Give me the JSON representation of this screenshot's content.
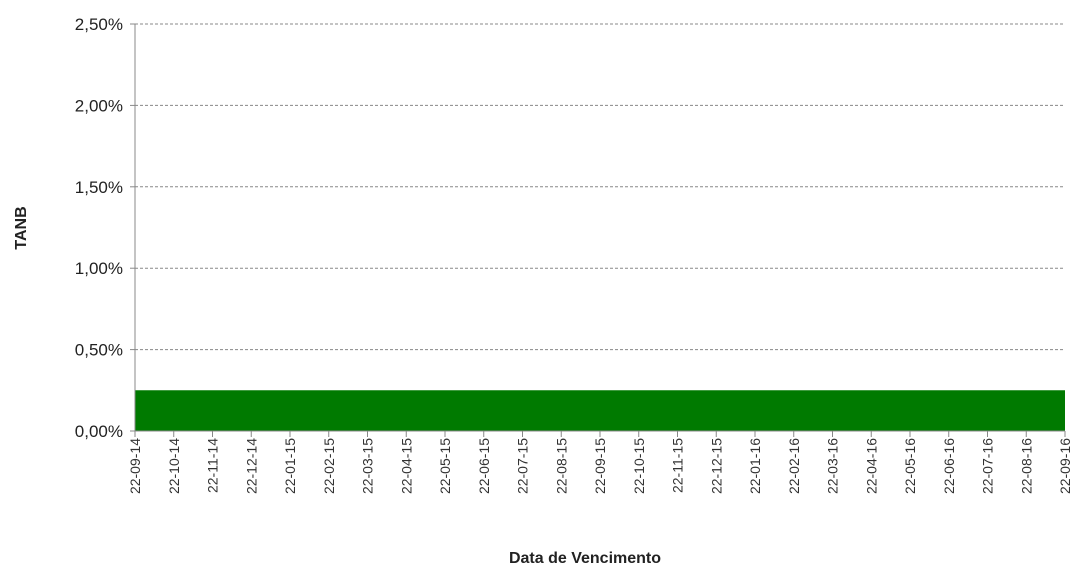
{
  "chart_data": {
    "type": "area",
    "x_label": "Data de Vencimento",
    "y_label": "TANB",
    "categories": [
      "22-09-14",
      "22-10-14",
      "22-11-14",
      "22-12-14",
      "22-01-15",
      "22-02-15",
      "22-03-15",
      "22-04-15",
      "22-05-15",
      "22-06-15",
      "22-07-15",
      "22-08-15",
      "22-09-15",
      "22-10-15",
      "22-11-15",
      "22-12-15",
      "22-01-16",
      "22-02-16",
      "22-03-16",
      "22-04-16",
      "22-05-16",
      "22-06-16",
      "22-07-16",
      "22-08-16",
      "22-09-16"
    ],
    "series": [
      {
        "name": "TANB",
        "color": "#007a00",
        "values": [
          0.25,
          0.25,
          0.25,
          0.25,
          0.25,
          0.25,
          0.25,
          0.25,
          0.25,
          0.25,
          0.25,
          0.25,
          0.25,
          0.25,
          0.25,
          0.25,
          0.25,
          0.25,
          0.25,
          0.25,
          0.25,
          0.25,
          0.25,
          0.25,
          0.25
        ]
      }
    ],
    "ylim": [
      0,
      2.5
    ],
    "yticks": [
      {
        "value": 0,
        "label": "0,00%"
      },
      {
        "value": 0.5,
        "label": "0,50%"
      },
      {
        "value": 1,
        "label": "1,00%"
      },
      {
        "value": 1.5,
        "label": "1,50%"
      },
      {
        "value": 2,
        "label": "2,00%"
      },
      {
        "value": 2.5,
        "label": "2,50%"
      }
    ],
    "grid": true
  }
}
